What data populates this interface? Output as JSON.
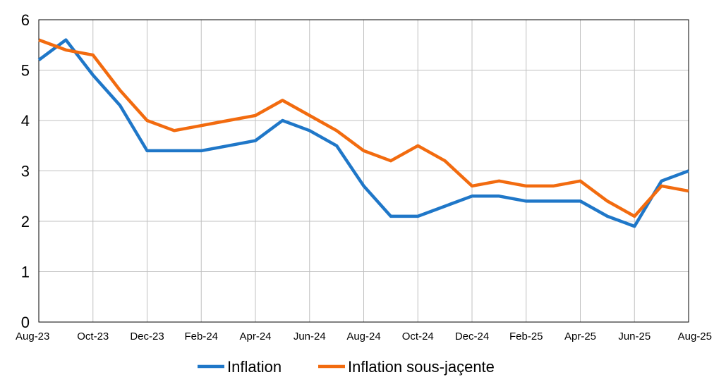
{
  "chart_data": {
    "type": "line",
    "x": [
      "Aug-23",
      "Sep-23",
      "Oct-23",
      "Nov-23",
      "Dec-23",
      "Jan-24",
      "Feb-24",
      "Mar-24",
      "Apr-24",
      "May-24",
      "Jun-24",
      "Jul-24",
      "Aug-24",
      "Sep-24",
      "Oct-24",
      "Nov-24",
      "Dec-24",
      "Jan-25",
      "Feb-25",
      "Mar-25",
      "Apr-25",
      "May-25",
      "Jun-25",
      "Jul-25",
      "Aug-25"
    ],
    "xtick_labels": [
      "Aug-23",
      "Oct-23",
      "Dec-23",
      "Feb-24",
      "Apr-24",
      "Jun-24",
      "Aug-24",
      "Oct-24",
      "Dec-24",
      "Feb-25",
      "Apr-25",
      "Jun-25",
      "Aug-25"
    ],
    "yticks": [
      0,
      1,
      2,
      3,
      4,
      5,
      6
    ],
    "ylim": [
      0,
      6
    ],
    "grid": true,
    "legend_position": "bottom",
    "series": [
      {
        "name": "Inflation",
        "color": "#1f77c8",
        "values": [
          5.2,
          5.6,
          4.9,
          4.3,
          3.4,
          3.4,
          3.4,
          3.5,
          3.6,
          4.0,
          3.8,
          3.5,
          2.7,
          2.1,
          2.1,
          2.3,
          2.5,
          2.5,
          2.4,
          2.4,
          2.4,
          2.1,
          1.9,
          2.8,
          3.0
        ]
      },
      {
        "name": "Inflation sous-jaçente",
        "color": "#f26b0f",
        "values": [
          5.6,
          5.4,
          5.3,
          4.6,
          4.0,
          3.8,
          3.9,
          4.0,
          4.1,
          4.4,
          4.1,
          3.8,
          3.4,
          3.2,
          3.5,
          3.2,
          2.7,
          2.8,
          2.7,
          2.7,
          2.8,
          2.4,
          2.1,
          2.7,
          2.6
        ]
      }
    ]
  }
}
